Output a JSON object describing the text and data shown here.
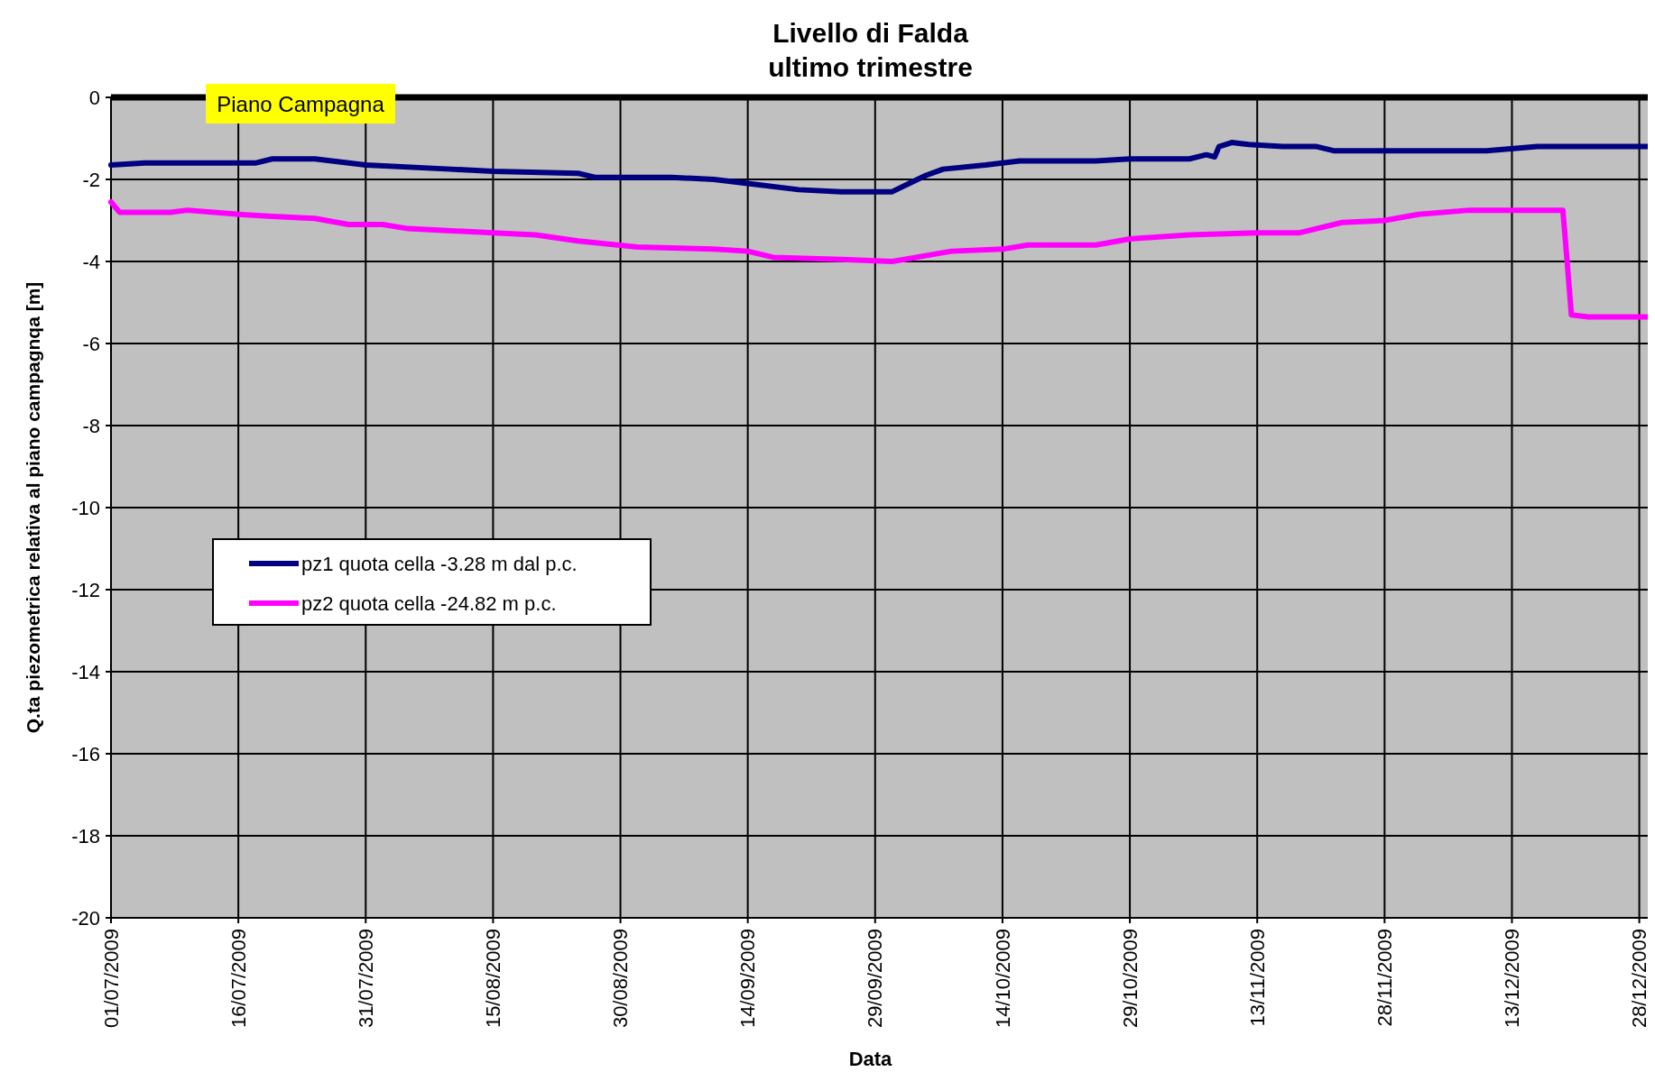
{
  "chart_data": {
    "type": "line",
    "title": "Livello di Falda\nultimo trimestre",
    "xlabel": "Data",
    "ylabel": "Q.ta piezometrica relativa al piano campagnqa [m]",
    "xlim": [
      "2009-07-01",
      "2009-12-29"
    ],
    "xticks": [
      {
        "value": "2009-07-01",
        "label": "01/07/2009"
      },
      {
        "value": "2009-07-16",
        "label": "16/07/2009"
      },
      {
        "value": "2009-07-31",
        "label": "31/07/2009"
      },
      {
        "value": "2009-08-15",
        "label": "15/08/2009"
      },
      {
        "value": "2009-08-30",
        "label": "30/08/2009"
      },
      {
        "value": "2009-09-14",
        "label": "14/09/2009"
      },
      {
        "value": "2009-09-29",
        "label": "29/09/2009"
      },
      {
        "value": "2009-10-14",
        "label": "14/10/2009"
      },
      {
        "value": "2009-10-29",
        "label": "29/10/2009"
      },
      {
        "value": "2009-11-13",
        "label": "13/11/2009"
      },
      {
        "value": "2009-11-28",
        "label": "28/11/2009"
      },
      {
        "value": "2009-12-13",
        "label": "13/12/2009"
      },
      {
        "value": "2009-12-28",
        "label": "28/12/2009"
      }
    ],
    "ylim": [
      -20,
      0
    ],
    "yticks": [
      -20,
      -18,
      -16,
      -14,
      -12,
      -10,
      -8,
      -6,
      -4,
      -2,
      0
    ],
    "grid": true,
    "legend": "left",
    "line_style": "solid",
    "marker": "none",
    "ref_lines": [
      {
        "axis": "y",
        "value": 0,
        "label": "Piano Campagna",
        "color": "#000000"
      }
    ],
    "series": [
      {
        "name": "pz1 quota cella -3.28 m dal p.c.",
        "color": "#000080",
        "x": [
          "2009-07-01",
          "2009-07-05",
          "2009-07-18",
          "2009-07-20",
          "2009-07-25",
          "2009-07-31",
          "2009-08-10",
          "2009-08-15",
          "2009-08-25",
          "2009-08-27",
          "2009-09-05",
          "2009-09-10",
          "2009-09-14",
          "2009-09-20",
          "2009-09-25",
          "2009-10-01",
          "2009-10-05",
          "2009-10-07",
          "2009-10-12",
          "2009-10-16",
          "2009-10-25",
          "2009-10-29",
          "2009-11-05",
          "2009-11-07",
          "2009-11-08",
          "2009-11-08T12:00",
          "2009-11-10",
          "2009-11-12",
          "2009-11-16",
          "2009-11-20",
          "2009-11-22",
          "2009-12-10",
          "2009-12-16",
          "2009-12-29"
        ],
        "values": [
          -1.65,
          -1.6,
          -1.6,
          -1.5,
          -1.5,
          -1.65,
          -1.75,
          -1.8,
          -1.85,
          -1.95,
          -1.95,
          -2.0,
          -2.1,
          -2.25,
          -2.3,
          -2.3,
          -1.9,
          -1.75,
          -1.65,
          -1.55,
          -1.55,
          -1.5,
          -1.5,
          -1.4,
          -1.45,
          -1.2,
          -1.1,
          -1.15,
          -1.2,
          -1.2,
          -1.3,
          -1.3,
          -1.2,
          -1.2
        ]
      },
      {
        "name": "pz2 quota cella -24.82 m p.c.",
        "color": "#ff00ff",
        "x": [
          "2009-07-01",
          "2009-07-02",
          "2009-07-08",
          "2009-07-10",
          "2009-07-16",
          "2009-07-20",
          "2009-07-25",
          "2009-07-29",
          "2009-08-02",
          "2009-08-05",
          "2009-08-15",
          "2009-08-20",
          "2009-08-25",
          "2009-09-01",
          "2009-09-10",
          "2009-09-14",
          "2009-09-17",
          "2009-09-25",
          "2009-10-01",
          "2009-10-08",
          "2009-10-14",
          "2009-10-17",
          "2009-10-25",
          "2009-10-29",
          "2009-11-05",
          "2009-11-13",
          "2009-11-18",
          "2009-11-23",
          "2009-11-28",
          "2009-12-02",
          "2009-12-08",
          "2009-12-13",
          "2009-12-19",
          "2009-12-19T12:00",
          "2009-12-20",
          "2009-12-22",
          "2009-12-29"
        ],
        "values": [
          -2.55,
          -2.8,
          -2.8,
          -2.75,
          -2.85,
          -2.9,
          -2.95,
          -3.1,
          -3.1,
          -3.2,
          -3.3,
          -3.35,
          -3.5,
          -3.65,
          -3.7,
          -3.75,
          -3.9,
          -3.95,
          -4.0,
          -3.75,
          -3.7,
          -3.6,
          -3.6,
          -3.45,
          -3.35,
          -3.3,
          -3.3,
          -3.05,
          -3.0,
          -2.85,
          -2.75,
          -2.75,
          -2.75,
          -4.0,
          -5.3,
          -5.35,
          -5.35
        ]
      }
    ]
  }
}
